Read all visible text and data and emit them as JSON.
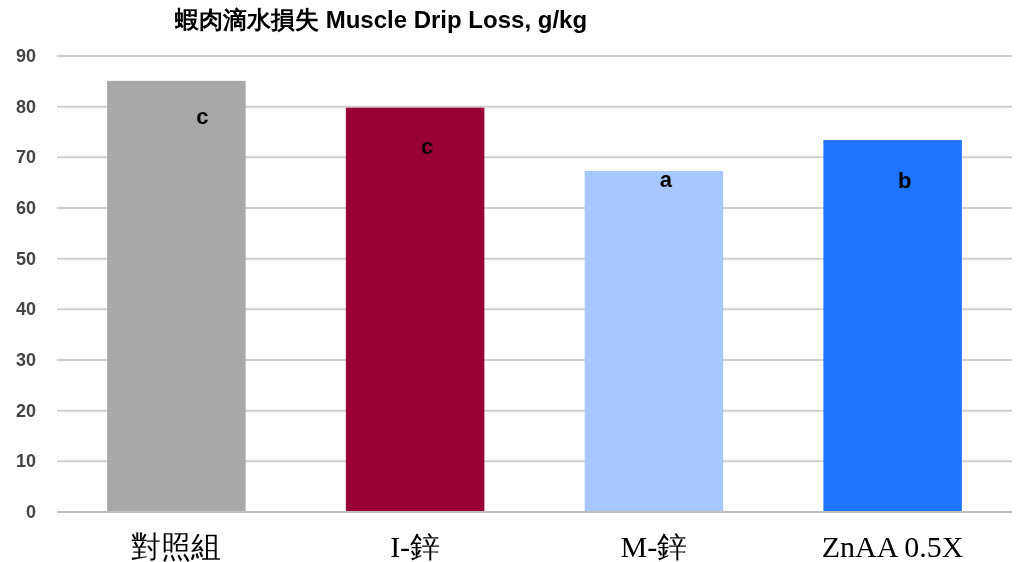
{
  "chart_data": {
    "type": "bar",
    "title": "蝦肉滴水損失 Muscle Drip Loss, g/kg",
    "categories": [
      "對照組",
      "I-鋅",
      "M-鋅",
      "ZnAA 0.5X"
    ],
    "values": [
      85.1,
      79.8,
      67.3,
      73.4
    ],
    "colors": [
      "#a8a8a8",
      "#990033",
      "#a6c8ff",
      "#1f75fe"
    ],
    "ylim": [
      0,
      90
    ],
    "yticks": [
      0,
      10,
      20,
      30,
      40,
      50,
      60,
      70,
      80,
      90
    ],
    "grid": "y",
    "annotations": [
      "c",
      "c",
      "a",
      "b"
    ]
  }
}
